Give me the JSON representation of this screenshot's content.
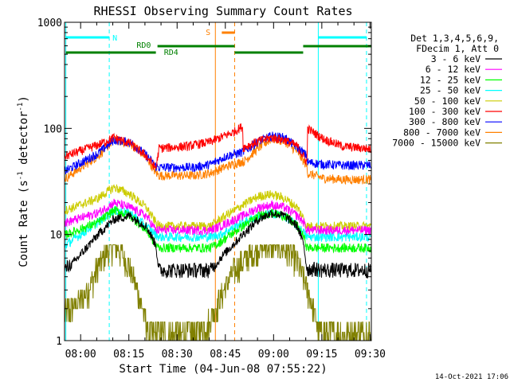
{
  "chart_data": {
    "type": "line",
    "title": "RHESSI Observing Summary Count Rates",
    "xlabel": "Start Time (04-Jun-08 07:55:22)",
    "ylabel_main": "Count Rate (s",
    "ylabel_sup1": "-1",
    "ylabel_mid": " detector",
    "ylabel_sup2": "-1",
    "ylabel_end": ")",
    "x_range_min": [
      -0.4,
      95
    ],
    "ylim": [
      1,
      1000
    ],
    "yscale": "log",
    "x_ticks": [
      {
        "min": 4.6,
        "label": "08:00"
      },
      {
        "min": 19.6,
        "label": "08:15"
      },
      {
        "min": 34.6,
        "label": "08:30"
      },
      {
        "min": 49.6,
        "label": "08:45"
      },
      {
        "min": 64.6,
        "label": "09:00"
      },
      {
        "min": 79.6,
        "label": "09:15"
      },
      {
        "min": 94.6,
        "label": "09:30"
      }
    ],
    "y_ticks": [
      {
        "value": 1,
        "label": "1"
      },
      {
        "value": 10,
        "label": "10"
      },
      {
        "value": 100,
        "label": "100"
      },
      {
        "value": 1000,
        "label": "1000"
      }
    ],
    "legend_header": [
      "Det 1,3,4,5,6,9,",
      "FDecim 1, Att 0"
    ],
    "series": [
      {
        "name": "3 - 6 keV",
        "color": "#000000",
        "points": [
          [
            0,
            4.5
          ],
          [
            10,
            10
          ],
          [
            15,
            14
          ],
          [
            20,
            15
          ],
          [
            25,
            12
          ],
          [
            28,
            8
          ],
          [
            29,
            4.4
          ],
          [
            45,
            4.4
          ],
          [
            48,
            6
          ],
          [
            55,
            10
          ],
          [
            60,
            14
          ],
          [
            64,
            16
          ],
          [
            68,
            15
          ],
          [
            72,
            12
          ],
          [
            74,
            8
          ],
          [
            75,
            4.5
          ],
          [
            78,
            4.5
          ],
          [
            80,
            4.4
          ],
          [
            95,
            4.4
          ]
        ]
      },
      {
        "name": "6 - 12 keV",
        "color": "#ff00ff",
        "points": [
          [
            0,
            13
          ],
          [
            10,
            16
          ],
          [
            15,
            20
          ],
          [
            20,
            18
          ],
          [
            25,
            15
          ],
          [
            28,
            11
          ],
          [
            29,
            11
          ],
          [
            45,
            11
          ],
          [
            48,
            12
          ],
          [
            55,
            15
          ],
          [
            60,
            18
          ],
          [
            64,
            19
          ],
          [
            68,
            18
          ],
          [
            72,
            15
          ],
          [
            74,
            13
          ],
          [
            75,
            11
          ],
          [
            95,
            11
          ]
        ]
      },
      {
        "name": "12 - 25 keV",
        "color": "#00ff00",
        "points": [
          [
            0,
            10
          ],
          [
            10,
            13
          ],
          [
            15,
            17
          ],
          [
            20,
            15
          ],
          [
            25,
            11
          ],
          [
            28,
            8
          ],
          [
            29,
            7.5
          ],
          [
            45,
            7.5
          ],
          [
            48,
            8.5
          ],
          [
            55,
            12
          ],
          [
            60,
            15
          ],
          [
            64,
            16
          ],
          [
            68,
            15
          ],
          [
            72,
            12
          ],
          [
            74,
            9.5
          ],
          [
            75,
            7.5
          ],
          [
            95,
            7.5
          ]
        ]
      },
      {
        "name": "25 - 50 keV",
        "color": "#00ffff",
        "points": [
          [
            0,
            8
          ],
          [
            10,
            13
          ],
          [
            15,
            17
          ],
          [
            20,
            16
          ],
          [
            25,
            12
          ],
          [
            28,
            10
          ],
          [
            29,
            9.5
          ],
          [
            45,
            9.5
          ],
          [
            48,
            10
          ],
          [
            55,
            13
          ],
          [
            60,
            15
          ],
          [
            64,
            16
          ],
          [
            68,
            15
          ],
          [
            72,
            12
          ],
          [
            74,
            10.5
          ],
          [
            75,
            9.5
          ],
          [
            95,
            9.5
          ]
        ]
      },
      {
        "name": "50 - 100 keV",
        "color": "#cccc00",
        "points": [
          [
            0,
            17
          ],
          [
            10,
            22
          ],
          [
            15,
            28
          ],
          [
            20,
            24
          ],
          [
            25,
            18
          ],
          [
            28,
            13
          ],
          [
            29,
            12
          ],
          [
            45,
            12
          ],
          [
            48,
            14
          ],
          [
            55,
            19
          ],
          [
            60,
            23
          ],
          [
            64,
            24
          ],
          [
            68,
            22
          ],
          [
            72,
            18
          ],
          [
            74,
            14
          ],
          [
            75,
            12
          ],
          [
            95,
            12
          ]
        ]
      },
      {
        "name": "100 - 300 keV",
        "color": "#ff0000",
        "points": [
          [
            0,
            55
          ],
          [
            10,
            70
          ],
          [
            15,
            82
          ],
          [
            20,
            72
          ],
          [
            25,
            55
          ],
          [
            28,
            42
          ],
          [
            29,
            65
          ],
          [
            38,
            68
          ],
          [
            45,
            75
          ],
          [
            52,
            92
          ],
          [
            55,
            105
          ],
          [
            55.1,
            66
          ],
          [
            60,
            76
          ],
          [
            64,
            82
          ],
          [
            68,
            78
          ],
          [
            72,
            68
          ],
          [
            75,
            48
          ],
          [
            75.2,
            100
          ],
          [
            80,
            80
          ],
          [
            86,
            68
          ],
          [
            95,
            64
          ]
        ]
      },
      {
        "name": "300 - 800 keV",
        "color": "#0000ff",
        "points": [
          [
            0,
            40
          ],
          [
            10,
            58
          ],
          [
            15,
            78
          ],
          [
            20,
            74
          ],
          [
            25,
            56
          ],
          [
            28,
            44
          ],
          [
            29,
            43
          ],
          [
            40,
            43
          ],
          [
            45,
            46
          ],
          [
            50,
            55
          ],
          [
            55,
            60
          ],
          [
            55.1,
            60
          ],
          [
            60,
            76
          ],
          [
            64,
            85
          ],
          [
            68,
            82
          ],
          [
            72,
            66
          ],
          [
            75,
            55
          ],
          [
            75.1,
            48
          ],
          [
            80,
            46
          ],
          [
            86,
            45
          ],
          [
            95,
            45
          ]
        ]
      },
      {
        "name": "800 - 7000 keV",
        "color": "#ff8000",
        "points": [
          [
            0,
            34
          ],
          [
            10,
            55
          ],
          [
            15,
            78
          ],
          [
            20,
            72
          ],
          [
            25,
            54
          ],
          [
            28,
            38
          ],
          [
            29,
            36
          ],
          [
            40,
            36
          ],
          [
            45,
            38
          ],
          [
            50,
            44
          ],
          [
            55,
            49
          ],
          [
            55.1,
            48
          ],
          [
            60,
            66
          ],
          [
            64,
            80
          ],
          [
            68,
            76
          ],
          [
            72,
            60
          ],
          [
            75,
            44
          ],
          [
            75.1,
            38
          ],
          [
            80,
            34
          ],
          [
            86,
            33
          ],
          [
            95,
            33
          ]
        ]
      },
      {
        "name": "7000 - 15000 keV",
        "color": "#808000",
        "points": [
          [
            0,
            1.8
          ],
          [
            5,
            2.5
          ],
          [
            8,
            3.5
          ],
          [
            10,
            5
          ],
          [
            13,
            7
          ],
          [
            15,
            8
          ],
          [
            17,
            7
          ],
          [
            19,
            5.5
          ],
          [
            21,
            4
          ],
          [
            23,
            2.5
          ],
          [
            25,
            1.5
          ],
          [
            26,
            1.2
          ],
          [
            38,
            1.2
          ],
          [
            44,
            1.4
          ],
          [
            48,
            2.5
          ],
          [
            52,
            4.5
          ],
          [
            56,
            6
          ],
          [
            60,
            7.5
          ],
          [
            64,
            8
          ],
          [
            68,
            7.5
          ],
          [
            71,
            6
          ],
          [
            74,
            4
          ],
          [
            76,
            2.5
          ],
          [
            78,
            1.5
          ],
          [
            79,
            1.2
          ],
          [
            95,
            1.2
          ]
        ]
      }
    ],
    "annotations": {
      "cyan_lines_min": [
        0,
        78.5
      ],
      "cyan_dashed_min": [
        13.5,
        93.5
      ],
      "orange_solid_min": 46.5,
      "orange_dashed_min": 52.5,
      "N_label": "N",
      "S_label": "S",
      "RD0_label": "RD0",
      "RD4_label": "RD4",
      "night_segments_min": [
        [
          0,
          13.5
        ],
        [
          78.5,
          93.5
        ]
      ],
      "saa_segment_min": [
        48.5,
        52.5
      ],
      "green_segments": [
        {
          "x0": 0,
          "x1": 28,
          "row": "low"
        },
        {
          "x0": 28.5,
          "x1": 52.5,
          "row": "high"
        },
        {
          "x0": 52.5,
          "x1": 73.8,
          "row": "low"
        },
        {
          "x0": 73.8,
          "x1": 95,
          "row": "high"
        }
      ]
    }
  },
  "timestamp": "14-Oct-2021 17:06"
}
